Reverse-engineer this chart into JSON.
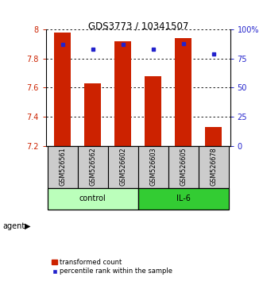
{
  "title": "GDS3773 / 10341507",
  "samples": [
    "GSM526561",
    "GSM526562",
    "GSM526602",
    "GSM526603",
    "GSM526605",
    "GSM526678"
  ],
  "bar_values": [
    7.98,
    7.63,
    7.92,
    7.68,
    7.94,
    7.33
  ],
  "percentile_values": [
    87,
    83,
    87,
    83,
    88,
    79
  ],
  "y_min": 7.2,
  "y_max": 8.0,
  "y_ticks": [
    7.2,
    7.4,
    7.6,
    7.8,
    8.0
  ],
  "y_tick_labels": [
    "7.2",
    "7.4",
    "7.6",
    "7.8",
    "8"
  ],
  "y2_ticks": [
    0,
    25,
    50,
    75,
    100
  ],
  "y2_tick_labels": [
    "0",
    "25",
    "50",
    "75",
    "100%"
  ],
  "bar_color": "#cc2200",
  "dot_color": "#2222cc",
  "group_ctrl_color": "#bbffbb",
  "group_il6_color": "#33cc33",
  "agent_label": "agent",
  "legend_bar_label": "transformed count",
  "legend_dot_label": "percentile rank within the sample",
  "bar_width": 0.55,
  "sample_bg_color": "#cccccc",
  "title_fontsize": 8.5
}
